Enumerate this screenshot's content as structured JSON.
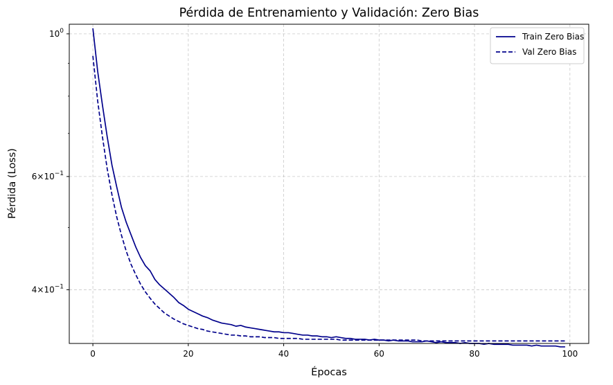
{
  "chart_data": {
    "type": "line",
    "title": "Pérdida de Entrenamiento y Validación: Zero Bias",
    "xlabel": "Épocas",
    "ylabel": "Pérdida (Loss)",
    "xlim": [
      -4.95,
      103.95
    ],
    "ylim": [
      0.33,
      1.035
    ],
    "yscale": "log",
    "grid": true,
    "legend_position": "top-right",
    "x_ticks": [
      0,
      20,
      40,
      60,
      80,
      100
    ],
    "x_tick_labels": [
      "0",
      "20",
      "40",
      "60",
      "80",
      "100"
    ],
    "y_ticks": [
      {
        "value": 1.0,
        "base": "10",
        "exp": "0",
        "mantissa": ""
      },
      {
        "value": 0.6,
        "base": "10",
        "exp": "−1",
        "mantissa": "6"
      },
      {
        "value": 0.4,
        "base": "10",
        "exp": "−1",
        "mantissa": "4"
      }
    ],
    "y_minor_ticks": [
      0.9,
      0.8,
      0.7,
      0.5
    ],
    "series": [
      {
        "name": "Train Zero Bias",
        "color": "#00008b",
        "style": "solid",
        "x": [
          0,
          1,
          2,
          3,
          4,
          5,
          6,
          7,
          8,
          9,
          10,
          11,
          12,
          13,
          14,
          15,
          16,
          17,
          18,
          19,
          20,
          21,
          22,
          23,
          24,
          25,
          26,
          27,
          28,
          29,
          30,
          31,
          32,
          33,
          34,
          35,
          36,
          37,
          38,
          39,
          40,
          41,
          42,
          43,
          44,
          45,
          46,
          47,
          48,
          49,
          50,
          51,
          52,
          53,
          54,
          55,
          56,
          57,
          58,
          59,
          60,
          61,
          62,
          63,
          64,
          65,
          66,
          67,
          68,
          69,
          70,
          71,
          72,
          73,
          74,
          75,
          76,
          77,
          78,
          79,
          80,
          81,
          82,
          83,
          84,
          85,
          86,
          87,
          88,
          89,
          90,
          91,
          92,
          93,
          94,
          95,
          96,
          97,
          98,
          99
        ],
        "values": [
          1.02,
          0.875,
          0.775,
          0.692,
          0.625,
          0.578,
          0.537,
          0.509,
          0.487,
          0.466,
          0.449,
          0.436,
          0.428,
          0.415,
          0.407,
          0.401,
          0.395,
          0.389,
          0.382,
          0.378,
          0.373,
          0.37,
          0.367,
          0.364,
          0.362,
          0.359,
          0.357,
          0.355,
          0.354,
          0.353,
          0.351,
          0.352,
          0.35,
          0.349,
          0.348,
          0.347,
          0.346,
          0.345,
          0.344,
          0.344,
          0.343,
          0.343,
          0.342,
          0.341,
          0.34,
          0.34,
          0.339,
          0.339,
          0.338,
          0.338,
          0.337,
          0.338,
          0.337,
          0.336,
          0.336,
          0.335,
          0.335,
          0.335,
          0.334,
          0.335,
          0.334,
          0.334,
          0.333,
          0.334,
          0.333,
          0.333,
          0.333,
          0.332,
          0.332,
          0.332,
          0.333,
          0.332,
          0.331,
          0.332,
          0.331,
          0.331,
          0.331,
          0.33,
          0.331,
          0.33,
          0.33,
          0.33,
          0.329,
          0.33,
          0.329,
          0.329,
          0.329,
          0.329,
          0.328,
          0.328,
          0.328,
          0.328,
          0.327,
          0.328,
          0.327,
          0.327,
          0.327,
          0.327,
          0.326,
          0.326
        ]
      },
      {
        "name": "Val Zero Bias",
        "color": "#00008b",
        "style": "dashed",
        "x": [
          0,
          1,
          2,
          3,
          4,
          5,
          6,
          7,
          8,
          9,
          10,
          11,
          12,
          13,
          14,
          15,
          16,
          17,
          18,
          19,
          20,
          21,
          22,
          23,
          24,
          25,
          26,
          27,
          28,
          29,
          30,
          31,
          32,
          33,
          34,
          35,
          36,
          37,
          38,
          39,
          40,
          41,
          42,
          43,
          44,
          45,
          46,
          47,
          48,
          49,
          50,
          51,
          52,
          53,
          54,
          55,
          56,
          57,
          58,
          59,
          60,
          61,
          62,
          63,
          64,
          65,
          66,
          67,
          68,
          69,
          70,
          71,
          72,
          73,
          74,
          75,
          76,
          77,
          78,
          79,
          80,
          81,
          82,
          83,
          84,
          85,
          86,
          87,
          88,
          89,
          90,
          91,
          92,
          93,
          94,
          95,
          96,
          97,
          98,
          99
        ],
        "values": [
          0.924,
          0.787,
          0.692,
          0.617,
          0.562,
          0.519,
          0.486,
          0.459,
          0.438,
          0.422,
          0.408,
          0.397,
          0.388,
          0.38,
          0.374,
          0.368,
          0.364,
          0.36,
          0.357,
          0.354,
          0.352,
          0.35,
          0.348,
          0.347,
          0.345,
          0.344,
          0.343,
          0.342,
          0.341,
          0.34,
          0.34,
          0.339,
          0.339,
          0.338,
          0.338,
          0.338,
          0.337,
          0.337,
          0.337,
          0.336,
          0.336,
          0.336,
          0.336,
          0.336,
          0.335,
          0.335,
          0.335,
          0.335,
          0.335,
          0.335,
          0.335,
          0.335,
          0.334,
          0.334,
          0.334,
          0.334,
          0.334,
          0.334,
          0.334,
          0.334,
          0.334,
          0.334,
          0.334,
          0.334,
          0.334,
          0.334,
          0.334,
          0.334,
          0.334,
          0.333,
          0.333,
          0.333,
          0.333,
          0.333,
          0.333,
          0.333,
          0.333,
          0.333,
          0.333,
          0.333,
          0.333,
          0.333,
          0.333,
          0.333,
          0.333,
          0.333,
          0.333,
          0.333,
          0.333,
          0.333,
          0.333,
          0.333,
          0.333,
          0.333,
          0.333,
          0.333,
          0.333,
          0.333,
          0.333,
          0.333
        ]
      }
    ]
  }
}
